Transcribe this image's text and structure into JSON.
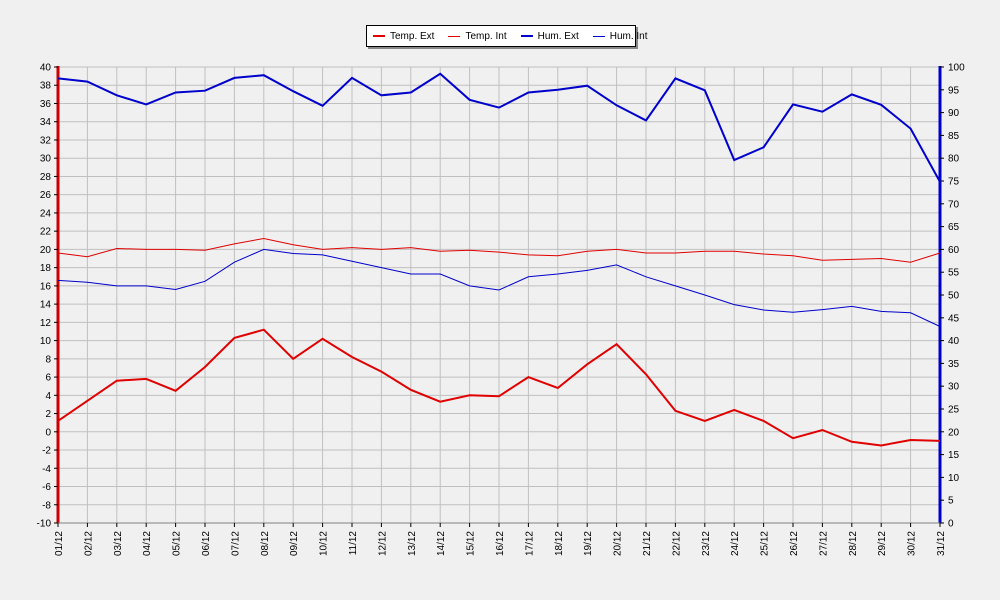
{
  "chart_data": {
    "type": "line",
    "categories": [
      "01/12",
      "02/12",
      "03/12",
      "04/12",
      "05/12",
      "06/12",
      "07/12",
      "08/12",
      "09/12",
      "10/12",
      "11/12",
      "12/12",
      "13/12",
      "14/12",
      "15/12",
      "16/12",
      "17/12",
      "18/12",
      "19/12",
      "20/12",
      "21/12",
      "22/12",
      "23/12",
      "24/12",
      "25/12",
      "26/12",
      "27/12",
      "28/12",
      "29/12",
      "30/12",
      "31/12"
    ],
    "left_axis": {
      "ylim": [
        -10,
        40
      ],
      "ticks": [
        -10,
        -8,
        -6,
        -4,
        -2,
        0,
        2,
        4,
        6,
        8,
        10,
        12,
        14,
        16,
        18,
        20,
        22,
        24,
        26,
        28,
        30,
        32,
        34,
        36,
        38,
        40
      ],
      "color": "#cc0000"
    },
    "right_axis": {
      "ylim": [
        0,
        100
      ],
      "ticks": [
        0,
        5,
        10,
        15,
        20,
        25,
        30,
        35,
        40,
        45,
        50,
        55,
        60,
        65,
        70,
        75,
        80,
        85,
        90,
        95,
        100
      ],
      "color": "#0000cc"
    },
    "grid": true,
    "legend_position": "top-center",
    "series": [
      {
        "name": "Temp. Ext",
        "axis": "left",
        "color": "#e00000",
        "width": 2,
        "values": [
          1.2,
          3.4,
          5.6,
          5.8,
          4.5,
          7.1,
          10.3,
          11.2,
          8.0,
          10.2,
          8.2,
          6.6,
          4.6,
          3.3,
          4.0,
          3.9,
          6.0,
          4.8,
          7.4,
          9.6,
          6.3,
          2.3,
          1.2,
          2.4,
          1.2,
          -0.7,
          0.2,
          -1.1,
          -1.5,
          -0.9,
          -1.0
        ]
      },
      {
        "name": "Temp. Int",
        "axis": "left",
        "color": "#e00000",
        "width": 1,
        "values": [
          19.6,
          19.2,
          20.1,
          20.0,
          20.0,
          19.9,
          20.6,
          21.2,
          20.5,
          20.0,
          20.2,
          20.0,
          20.2,
          19.8,
          19.9,
          19.7,
          19.4,
          19.3,
          19.8,
          20.0,
          19.6,
          19.6,
          19.8,
          19.8,
          19.5,
          19.3,
          18.8,
          18.9,
          19.0,
          18.6,
          19.6
        ]
      },
      {
        "name": "Hum. Ext",
        "axis": "right",
        "color": "#0000cc",
        "width": 2,
        "values": [
          97.5,
          96.8,
          93.8,
          91.8,
          94.4,
          94.8,
          97.6,
          98.2,
          94.7,
          91.5,
          97.6,
          93.8,
          94.4,
          98.5,
          92.8,
          91.1,
          94.4,
          95.0,
          95.9,
          91.6,
          88.3,
          97.5,
          94.9,
          79.6,
          82.4,
          91.8,
          90.2,
          94.0,
          91.7,
          86.5,
          74.8
        ]
      },
      {
        "name": "Hum. Int",
        "axis": "right",
        "color": "#0000cc",
        "width": 1,
        "values": [
          53.2,
          52.8,
          52.0,
          52.0,
          51.2,
          53.0,
          57.2,
          60.0,
          59.1,
          58.8,
          57.4,
          56.0,
          54.6,
          54.6,
          52.0,
          51.1,
          54.0,
          54.6,
          55.4,
          56.6,
          54.0,
          52.0,
          50.0,
          47.9,
          46.7,
          46.2,
          46.8,
          47.5,
          46.4,
          46.1,
          43.1
        ]
      }
    ]
  }
}
